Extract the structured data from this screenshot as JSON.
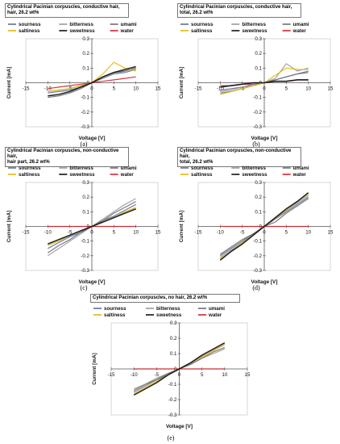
{
  "legend_items": [
    {
      "label": "sourness",
      "color": "#5a6ea8"
    },
    {
      "label": "bitterness",
      "color": "#9a9a9a"
    },
    {
      "label": "umami",
      "color": "#6e6e6e"
    },
    {
      "label": "saltiness",
      "color": "#e8b800"
    },
    {
      "label": "sweetness",
      "color": "#111111"
    },
    {
      "label": "water",
      "color": "#d0242c"
    }
  ],
  "axis": {
    "xlabel": "Voltage  [V]",
    "ylabel": "Current   [mA]"
  },
  "chart_data": [
    {
      "type": "line",
      "title": "Cylindrical Pacinian  corpuscles, conductive hair, hair, 26.2 wt%",
      "title_lines": [
        "Cylindrical Pacinian  corpuscles, conductive hair,",
        "hair, 26.2 wt%"
      ],
      "caption": "(a)",
      "xlim": [
        -15,
        15
      ],
      "ylim": [
        -0.3,
        0.3
      ],
      "xticks": [
        -15,
        -10,
        -5,
        0,
        5,
        10,
        15
      ],
      "yticks": [
        -0.3,
        -0.2,
        -0.1,
        0,
        0.1,
        0.2,
        0.3
      ],
      "xlabel": "Voltage  [V]",
      "ylabel": "Current   [mA]",
      "x": [
        -10,
        -7.5,
        -5,
        -2.5,
        0,
        2.5,
        5,
        7.5,
        10
      ],
      "series": [
        {
          "name": "sourness",
          "y": [
            -0.07,
            -0.06,
            -0.05,
            -0.03,
            0,
            0.03,
            0.06,
            0.07,
            0.09
          ]
        },
        {
          "name": "bitterness",
          "y": [
            -0.06,
            -0.05,
            -0.04,
            -0.02,
            0,
            0.03,
            0.06,
            0.08,
            0.1
          ]
        },
        {
          "name": "umami",
          "y": [
            -0.1,
            -0.09,
            -0.07,
            -0.04,
            0,
            0.04,
            0.07,
            0.08,
            0.1
          ]
        },
        {
          "name": "saltiness",
          "y": [
            -0.06,
            -0.05,
            -0.04,
            -0.02,
            0,
            0.06,
            0.14,
            0.1,
            0.08
          ]
        },
        {
          "name": "sweetness",
          "y": [
            -0.09,
            -0.08,
            -0.06,
            -0.03,
            0,
            0.04,
            0.07,
            0.09,
            0.11
          ]
        },
        {
          "name": "water",
          "y": [
            -0.04,
            -0.03,
            -0.02,
            -0.01,
            0,
            0.01,
            0.02,
            0.03,
            0.04
          ]
        }
      ]
    },
    {
      "type": "line",
      "title": "Cylindrical Pacinian  corpuscles, conductive hair, total, 26.2 wt%",
      "title_lines": [
        "Cylindrical Pacinian  corpuscles, conductive hair,",
        "total, 26.2 wt%"
      ],
      "caption": "(b)",
      "xlim": [
        -15,
        15
      ],
      "ylim": [
        -0.3,
        0.3
      ],
      "xticks": [
        -15,
        -10,
        -5,
        0,
        5,
        10,
        15
      ],
      "yticks": [
        -0.3,
        -0.2,
        -0.1,
        0,
        0.1,
        0.2,
        0.3
      ],
      "xlabel": "Voltage  [V]",
      "ylabel": "Current   [mA]",
      "x": [
        -10,
        -7.5,
        -5,
        -2.5,
        0,
        2.5,
        5,
        7.5,
        10
      ],
      "series": [
        {
          "name": "sourness",
          "y": [
            -0.05,
            -0.04,
            -0.03,
            -0.01,
            0,
            0.02,
            0.04,
            0.06,
            0.08
          ]
        },
        {
          "name": "bitterness",
          "y": [
            -0.06,
            -0.05,
            -0.03,
            -0.02,
            0,
            0.03,
            0.13,
            0.08,
            0.1
          ]
        },
        {
          "name": "umami",
          "y": [
            -0.07,
            -0.06,
            -0.04,
            -0.02,
            0,
            0.02,
            0.04,
            0.06,
            0.07
          ]
        },
        {
          "name": "saltiness",
          "y": [
            -0.08,
            -0.06,
            -0.04,
            -0.02,
            0,
            0.05,
            0.1,
            0.09,
            0.09
          ]
        },
        {
          "name": "sweetness",
          "y": [
            -0.03,
            -0.02,
            -0.01,
            0,
            0,
            0.01,
            0.01,
            0.02,
            0.02
          ]
        },
        {
          "name": "water",
          "y": [
            -0.02,
            -0.02,
            -0.01,
            -0.01,
            0,
            0.01,
            0.01,
            0.02,
            0.02
          ]
        }
      ]
    },
    {
      "type": "line",
      "title": "Cylindrical Pacinian  corpuscles, non-conductive hair, hair part, 26.2 wt%",
      "title_lines": [
        "Cylindrical Pacinian  corpuscles, non-conductive hair,",
        "hair part, 26.2 wt%"
      ],
      "caption": "(c)",
      "xlim": [
        -15,
        15
      ],
      "ylim": [
        -0.3,
        0.3
      ],
      "xticks": [
        -15,
        -10,
        -5,
        0,
        5,
        10,
        15
      ],
      "yticks": [
        -0.3,
        -0.2,
        -0.1,
        0,
        0.1,
        0.2,
        0.3
      ],
      "xlabel": "Voltage  [V]",
      "ylabel": "Current   [mA]",
      "x": [
        -10,
        -7.5,
        -5,
        -2.5,
        0,
        2.5,
        5,
        7.5,
        10
      ],
      "series": [
        {
          "name": "sourness",
          "y": [
            -0.15,
            -0.11,
            -0.07,
            -0.04,
            0,
            0.04,
            0.07,
            0.11,
            0.15
          ]
        },
        {
          "name": "bitterness",
          "y": [
            -0.2,
            -0.15,
            -0.1,
            -0.05,
            0,
            0.05,
            0.1,
            0.15,
            0.19
          ]
        },
        {
          "name": "umami",
          "y": [
            -0.18,
            -0.13,
            -0.09,
            -0.04,
            0,
            0.04,
            0.09,
            0.13,
            0.17
          ]
        },
        {
          "name": "saltiness",
          "y": [
            -0.13,
            -0.1,
            -0.06,
            -0.03,
            0,
            0.03,
            0.06,
            0.1,
            0.13
          ]
        },
        {
          "name": "sweetness",
          "y": [
            -0.12,
            -0.09,
            -0.06,
            -0.03,
            0,
            0.03,
            0.06,
            0.09,
            0.12
          ]
        },
        {
          "name": "water",
          "y": [
            0,
            0,
            0,
            0,
            0,
            0,
            0,
            0,
            0
          ]
        }
      ]
    },
    {
      "type": "line",
      "title": "Cylindrical Pacinian  corpuscles, non-conductive hair, total, 26.2 wt%",
      "title_lines": [
        "Cylindrical Pacinian  corpuscles, non-conductive hair,",
        "total, 26.2 wt%"
      ],
      "caption": "(d)",
      "xlim": [
        -15,
        15
      ],
      "ylim": [
        -0.3,
        0.3
      ],
      "xticks": [
        -15,
        -10,
        -5,
        0,
        5,
        10,
        15
      ],
      "yticks": [
        -0.3,
        -0.2,
        -0.1,
        0,
        0.1,
        0.2,
        0.3
      ],
      "xlabel": "Voltage  [V]",
      "ylabel": "Current   [mA]",
      "x": [
        -10,
        -7.5,
        -5,
        -2.5,
        0,
        2.5,
        5,
        7.5,
        10
      ],
      "series": [
        {
          "name": "sourness",
          "y": [
            -0.2,
            -0.15,
            -0.1,
            -0.05,
            0,
            0.05,
            0.1,
            0.15,
            0.2
          ]
        },
        {
          "name": "bitterness",
          "y": [
            -0.21,
            -0.16,
            -0.11,
            -0.05,
            0,
            0.05,
            0.11,
            0.16,
            0.21
          ]
        },
        {
          "name": "umami",
          "y": [
            -0.19,
            -0.14,
            -0.09,
            -0.05,
            0,
            0.03,
            0.09,
            0.14,
            0.19
          ]
        },
        {
          "name": "saltiness",
          "y": [
            -0.22,
            -0.17,
            -0.11,
            -0.06,
            0,
            0.06,
            0.11,
            0.17,
            0.22
          ]
        },
        {
          "name": "sweetness",
          "y": [
            -0.23,
            -0.17,
            -0.12,
            -0.06,
            0,
            0.06,
            0.12,
            0.17,
            0.23
          ]
        },
        {
          "name": "water",
          "y": [
            0,
            0,
            0,
            0,
            0,
            0,
            0,
            0,
            0
          ]
        }
      ]
    },
    {
      "type": "line",
      "title": "Cylindrical Pacinian  corpuscles, no hair, 26.2 wt%",
      "title_lines": [
        "Cylindrical Pacinian  corpuscles, no hair, 26.2 wt%"
      ],
      "caption": "(e)",
      "xlim": [
        -15,
        15
      ],
      "ylim": [
        -0.3,
        0.3
      ],
      "xticks": [
        -15,
        -10,
        -5,
        0,
        5,
        10,
        15
      ],
      "yticks": [
        -0.3,
        -0.2,
        -0.1,
        0,
        0.1,
        0.2,
        0.3
      ],
      "xlabel": "Voltage  [V]",
      "ylabel": "Current   [mA]",
      "x": [
        -10,
        -7.5,
        -5,
        -2.5,
        0,
        2.5,
        5,
        7.5,
        10
      ],
      "series": [
        {
          "name": "sourness",
          "y": [
            -0.15,
            -0.11,
            -0.07,
            -0.04,
            0,
            0.04,
            0.08,
            0.12,
            0.16
          ]
        },
        {
          "name": "bitterness",
          "y": [
            -0.13,
            -0.1,
            -0.06,
            -0.03,
            0,
            0.03,
            0.07,
            0.1,
            0.13
          ]
        },
        {
          "name": "umami",
          "y": [
            -0.14,
            -0.1,
            -0.07,
            -0.03,
            0,
            0.03,
            0.07,
            0.11,
            0.14
          ]
        },
        {
          "name": "saltiness",
          "y": [
            -0.16,
            -0.12,
            -0.08,
            -0.04,
            0,
            0.04,
            0.08,
            0.12,
            0.16
          ]
        },
        {
          "name": "sweetness",
          "y": [
            -0.17,
            -0.13,
            -0.09,
            -0.04,
            0,
            0.04,
            0.09,
            0.13,
            0.17
          ]
        },
        {
          "name": "water",
          "y": [
            0,
            0,
            0,
            0,
            0,
            0,
            0,
            0,
            0
          ]
        }
      ]
    }
  ]
}
